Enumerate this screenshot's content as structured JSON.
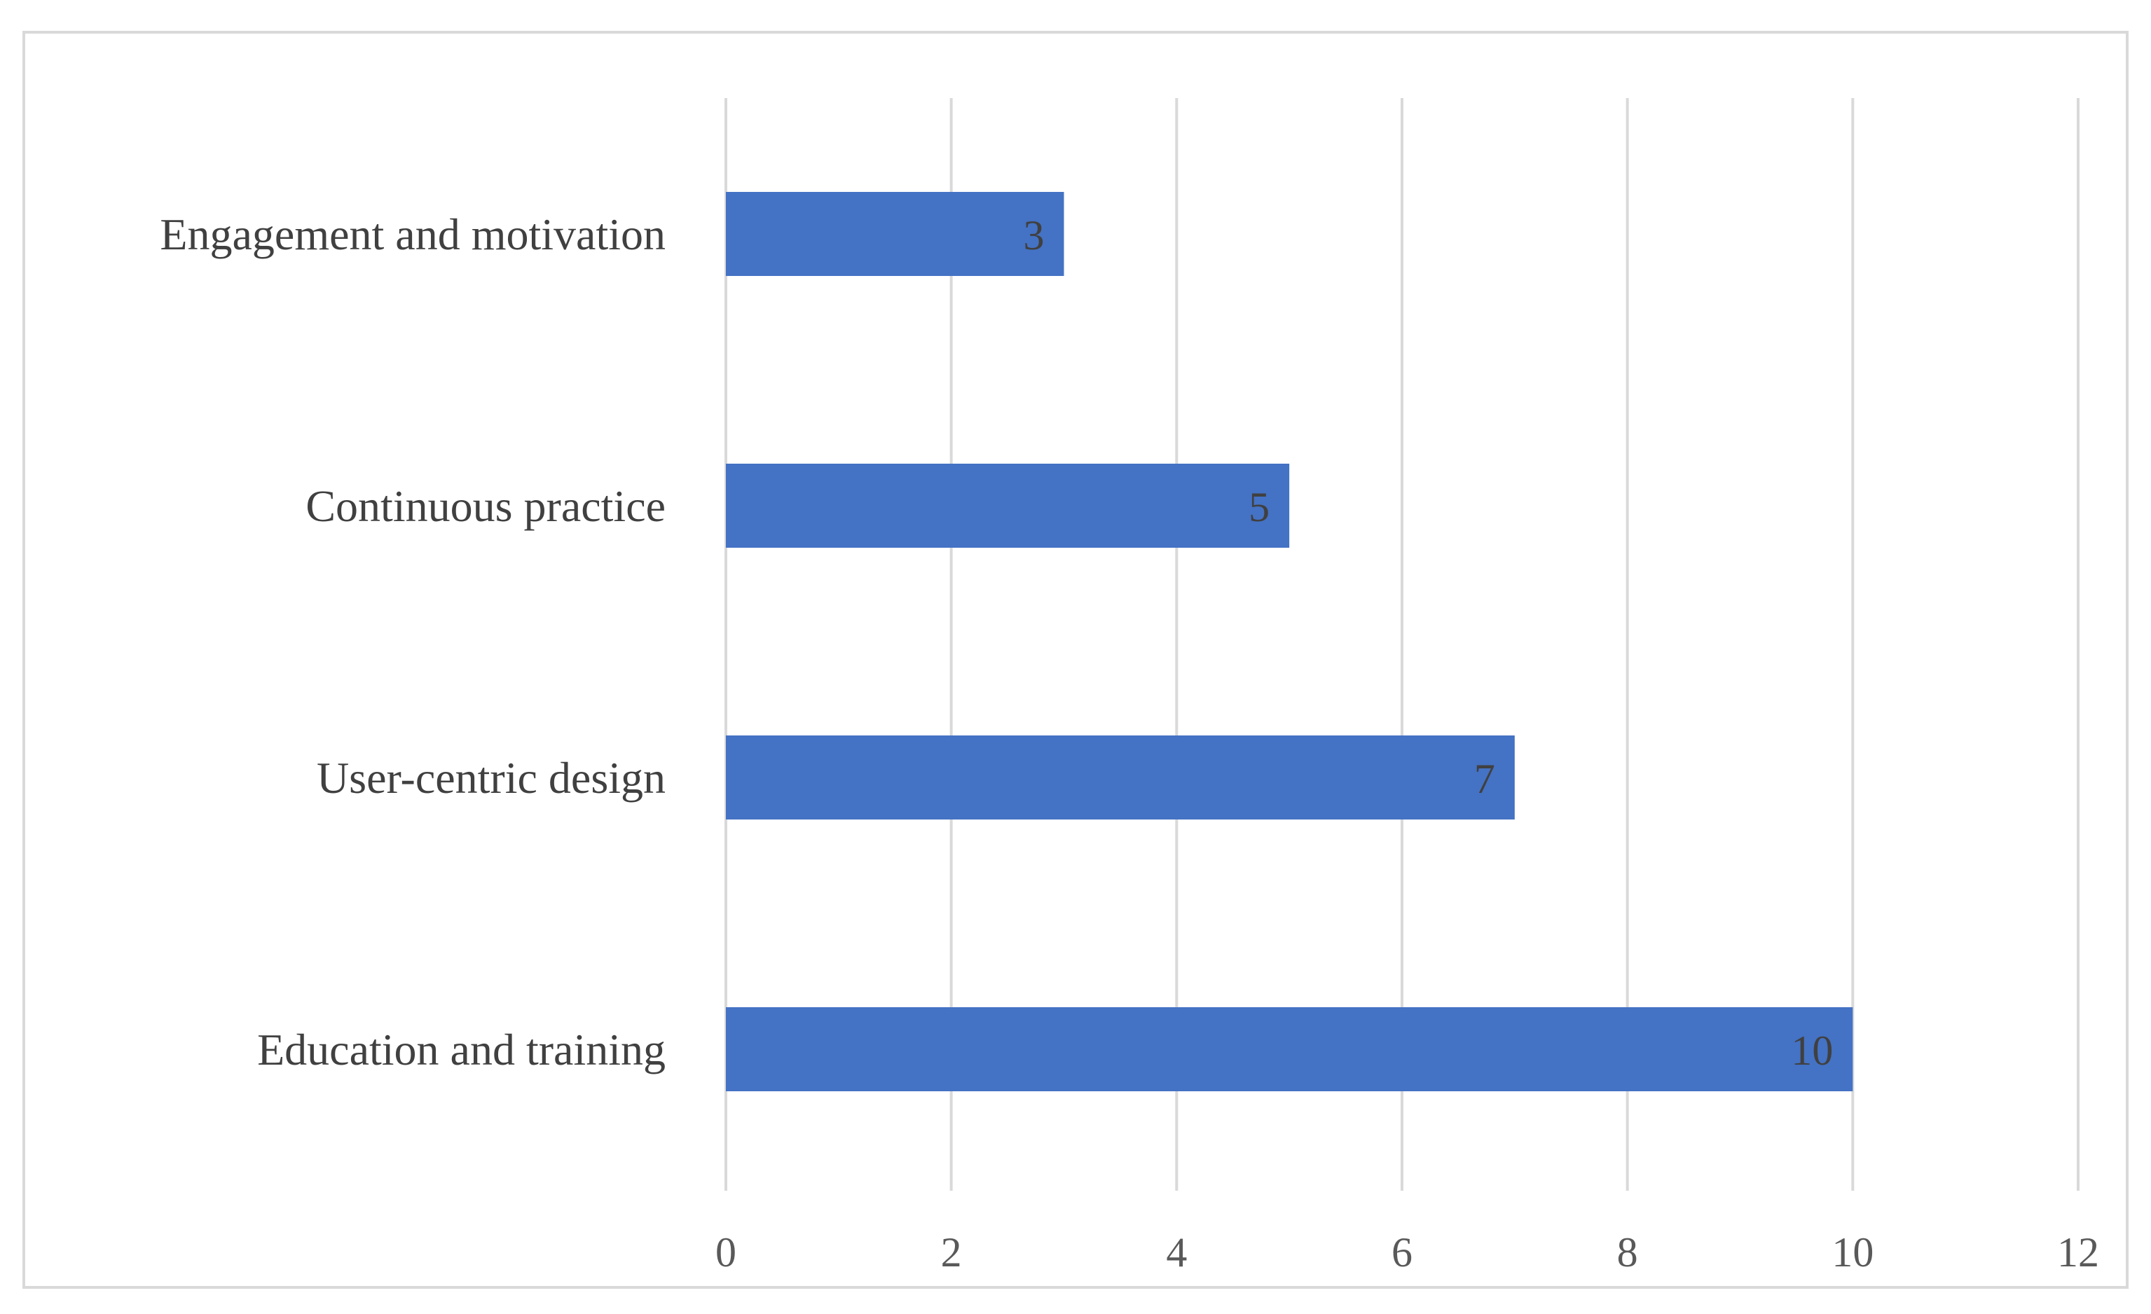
{
  "chart_data": {
    "type": "bar",
    "orientation": "horizontal",
    "categories": [
      "Engagement and motivation",
      "Continuous practice",
      "User-centric design",
      "Education and training"
    ],
    "values": [
      3,
      5,
      7,
      10
    ],
    "title": "",
    "xlabel": "",
    "ylabel": "",
    "xlim": [
      0,
      12
    ],
    "xticks": [
      0,
      2,
      4,
      6,
      8,
      10,
      12
    ],
    "grid": "vertical",
    "legend": "none",
    "data_labels": true,
    "bar_color": "#4472c4",
    "grid_color": "#d9d9d9"
  }
}
